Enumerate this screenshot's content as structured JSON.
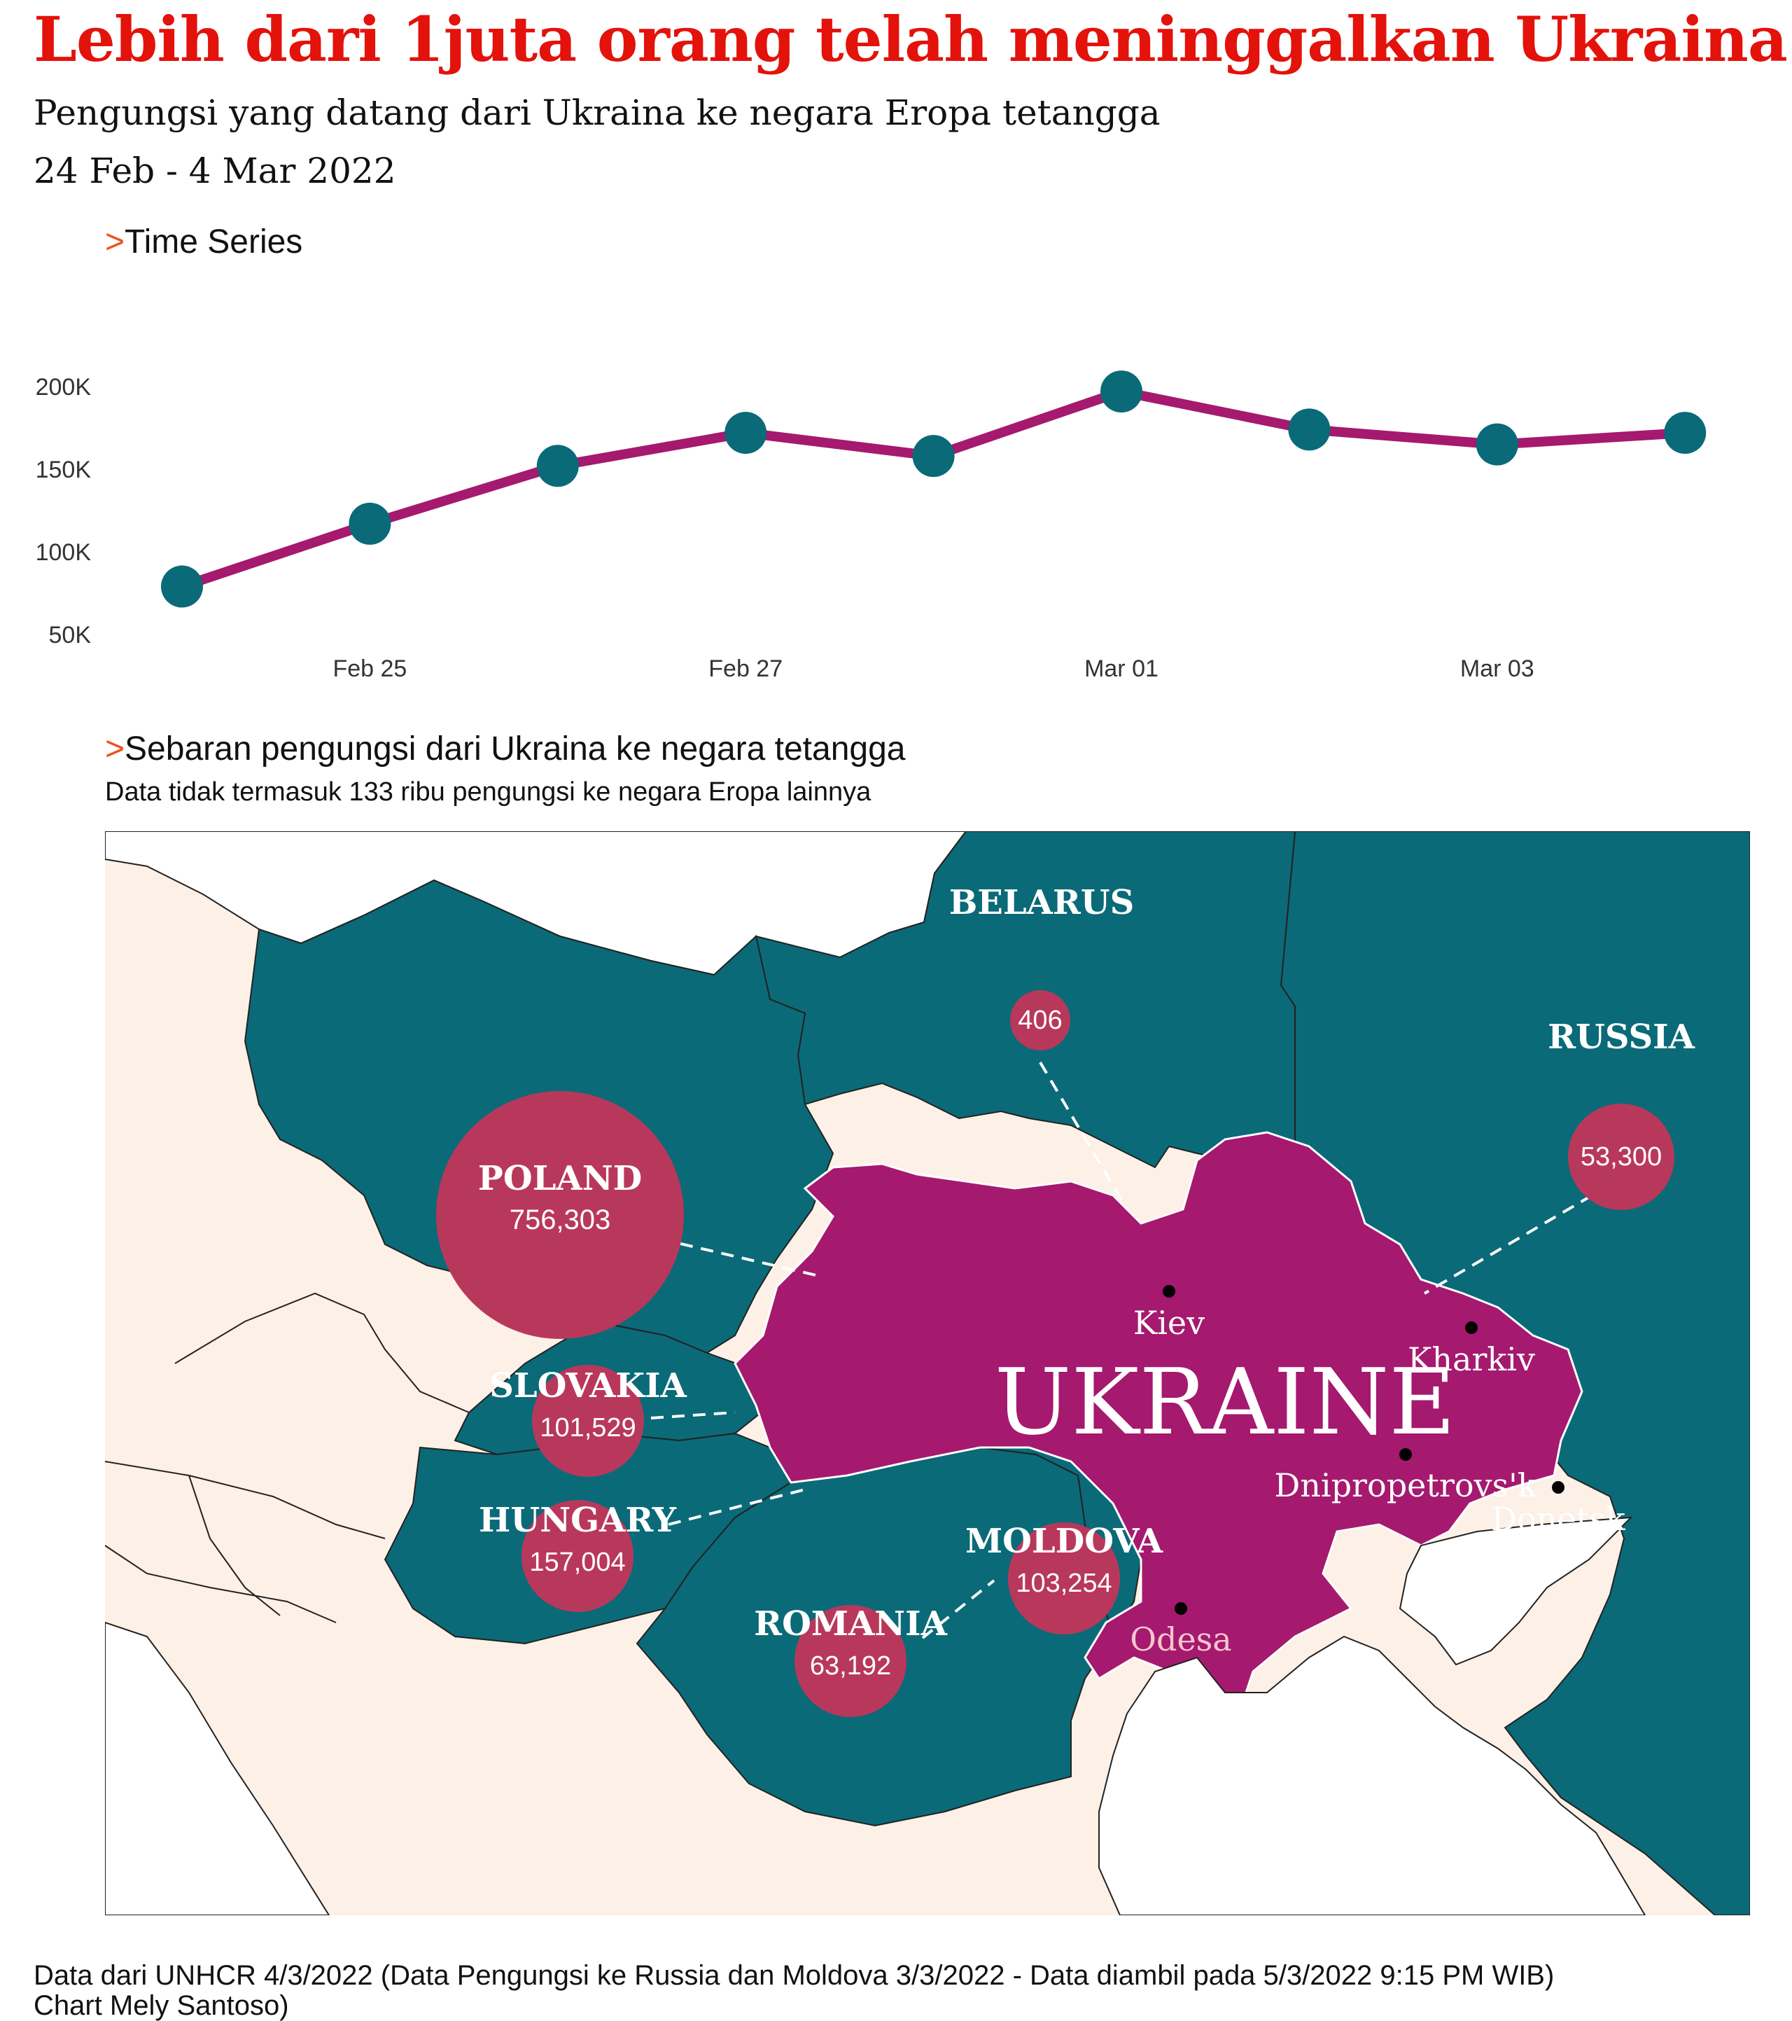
{
  "header": {
    "title": "Lebih dari 1juta orang telah meninggalkan Ukraina",
    "subtitle": "Pengungsi yang datang dari Ukraina ke negara Eropa tetangga",
    "date_range": "24 Feb - 4 Mar 2022"
  },
  "section_time": {
    "chevron": ">",
    "label": "Time Series"
  },
  "section_map": {
    "chevron": ">",
    "label": "Sebaran pengungsi dari Ukraina ke negara tetangga",
    "note": "Data tidak termasuk 133 ribu pengungsi ke negara Eropa lainnya"
  },
  "colors": {
    "title_red": "#e3120b",
    "line": "#a5196f",
    "dot": "#0a6a78",
    "neighbor_fill": "#0a6a78",
    "ukraine_fill": "#a5196f",
    "bubble": "#b8385b",
    "land_other": "#fdf0e6",
    "chevron": "#f0501e"
  },
  "chart_data": [
    {
      "type": "line",
      "x": [
        "2022-02-24",
        "2022-02-25",
        "2022-02-26",
        "2022-02-27",
        "2022-02-28",
        "2022-03-01",
        "2022-03-02",
        "2022-03-03",
        "2022-03-04"
      ],
      "values": [
        79000,
        117000,
        152000,
        172000,
        158000,
        197000,
        174000,
        165000,
        172000
      ],
      "x_tick_labels": [
        "Feb 25",
        "Feb 27",
        "Mar 01",
        "Mar 03"
      ],
      "y_tick_labels": [
        "50K",
        "100K",
        "150K",
        "200K"
      ],
      "y_ticks": [
        50000,
        100000,
        150000,
        200000
      ],
      "ylim": [
        50000,
        200000
      ],
      "grid": false
    },
    {
      "type": "bubble-map",
      "region_label": "UKRAINE",
      "countries": [
        {
          "name": "POLAND",
          "value": 756303,
          "value_label": "756,303"
        },
        {
          "name": "SLOVAKIA",
          "value": 101529,
          "value_label": "101,529"
        },
        {
          "name": "HUNGARY",
          "value": 157004,
          "value_label": "157,004"
        },
        {
          "name": "ROMANIA",
          "value": 63192,
          "value_label": "63,192"
        },
        {
          "name": "MOLDOVA",
          "value": 103254,
          "value_label": "103,254"
        },
        {
          "name": "BELARUS",
          "value": 406,
          "value_label": "406"
        },
        {
          "name": "RUSSIA",
          "value": 53300,
          "value_label": "53,300"
        }
      ],
      "cities": [
        "Kiev",
        "Kharkiv",
        "Dnipropetrovs'k",
        "Donetsk",
        "Odesa"
      ]
    }
  ],
  "footer": {
    "source": "Data dari UNHCR 4/3/2022 (Data Pengungsi ke Russia dan Moldova 3/3/2022 - Data diambil pada 5/3/2022 9:15 PM WIB)",
    "credit": "Chart Mely Santoso)"
  }
}
